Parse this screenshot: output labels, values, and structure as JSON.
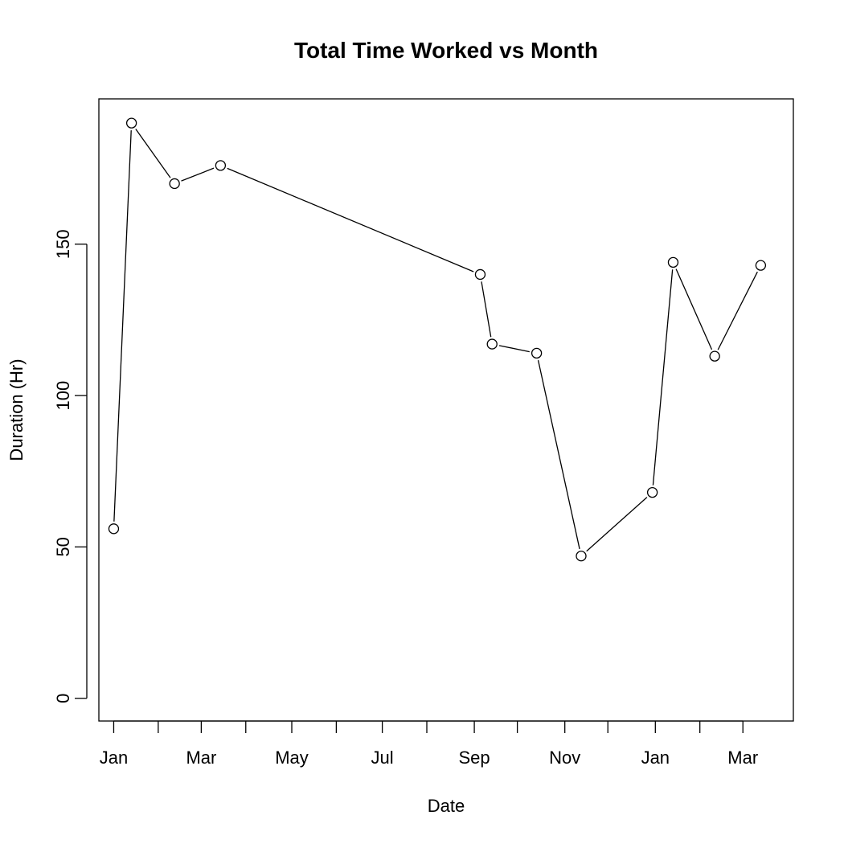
{
  "chart_data": {
    "type": "line",
    "title": "Total Time Worked vs Month",
    "xlabel": "Date",
    "ylabel": "Duration (Hr)",
    "x_axis_type": "date",
    "xlim": [
      "2016-12-22",
      "2018-04-04"
    ],
    "ylim": [
      -7.5,
      198
    ],
    "y_ticks": [
      0,
      50,
      100,
      150
    ],
    "x_major_ticks": [
      {
        "date": "2017-01-01",
        "label": "Jan"
      },
      {
        "date": "2017-03-01",
        "label": "Mar"
      },
      {
        "date": "2017-05-01",
        "label": "May"
      },
      {
        "date": "2017-07-01",
        "label": "Jul"
      },
      {
        "date": "2017-09-01",
        "label": "Sep"
      },
      {
        "date": "2017-11-01",
        "label": "Nov"
      },
      {
        "date": "2018-01-01",
        "label": "Jan"
      },
      {
        "date": "2018-03-01",
        "label": "Mar"
      }
    ],
    "x_minor_ticks": [
      "2017-01-31",
      "2017-03-31",
      "2017-05-31",
      "2017-07-31",
      "2017-09-30",
      "2017-11-30",
      "2018-01-31"
    ],
    "grid": false,
    "marker": "open-circle",
    "series": [
      {
        "name": "",
        "points": [
          {
            "x": "2017-01-01",
            "y": 56
          },
          {
            "x": "2017-01-13",
            "y": 190
          },
          {
            "x": "2017-02-11",
            "y": 170
          },
          {
            "x": "2017-03-14",
            "y": 176
          },
          {
            "x": "2017-09-05",
            "y": 140
          },
          {
            "x": "2017-09-13",
            "y": 117
          },
          {
            "x": "2017-10-13",
            "y": 114
          },
          {
            "x": "2017-11-12",
            "y": 47
          },
          {
            "x": "2017-12-30",
            "y": 68
          },
          {
            "x": "2018-01-13",
            "y": 144
          },
          {
            "x": "2018-02-10",
            "y": 113
          },
          {
            "x": "2018-03-13",
            "y": 143
          }
        ]
      }
    ]
  },
  "colors": {
    "line": "#000000",
    "marker_fill": "#ffffff",
    "background": "#ffffff"
  }
}
